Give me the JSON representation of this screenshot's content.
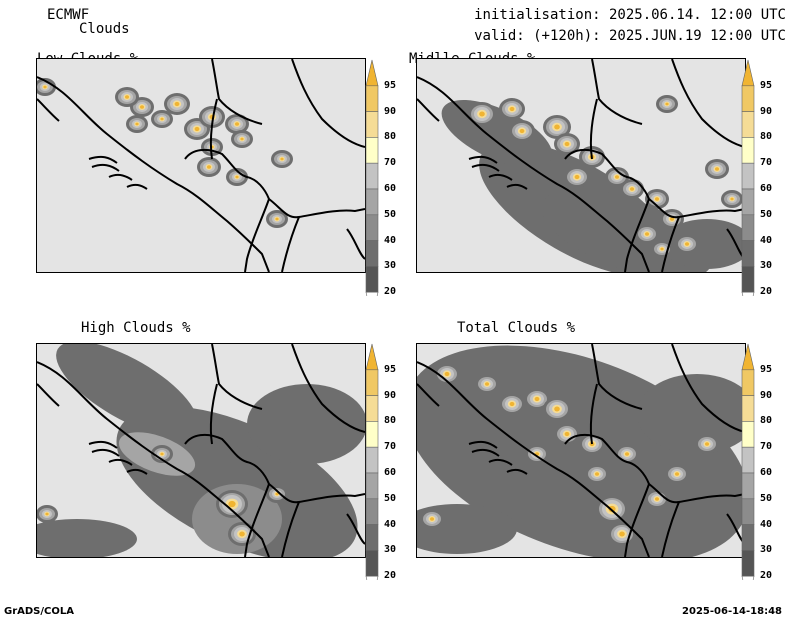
{
  "header": {
    "model": "ECMWF",
    "parameter": "Clouds",
    "init": "initialisation: 2025.06.14. 12:00 UTC",
    "valid": "valid: (+120h): 2025.JUN.19 12:00 UTC"
  },
  "panels": [
    {
      "title": "Low Clouds %"
    },
    {
      "title": "Midlle Clouds %"
    },
    {
      "title": "High Clouds %"
    },
    {
      "title": "Total Clouds %"
    }
  ],
  "colorbar": {
    "levels": [
      "20",
      "30",
      "40",
      "50",
      "60",
      "70",
      "80",
      "90",
      "95"
    ],
    "colors": {
      "c0": "#ffffff",
      "c20": "#555555",
      "c30": "#6e6e6e",
      "c40": "#8c8c8c",
      "c50": "#a5a5a5",
      "c60": "#c3c3c3",
      "c70": "#ffffc8",
      "c80": "#f5dc96",
      "c90": "#f0c864",
      "c95": "#f0b432"
    }
  },
  "footer": {
    "left": "GrADS/COLA",
    "right": "2025-06-14-18:48"
  }
}
